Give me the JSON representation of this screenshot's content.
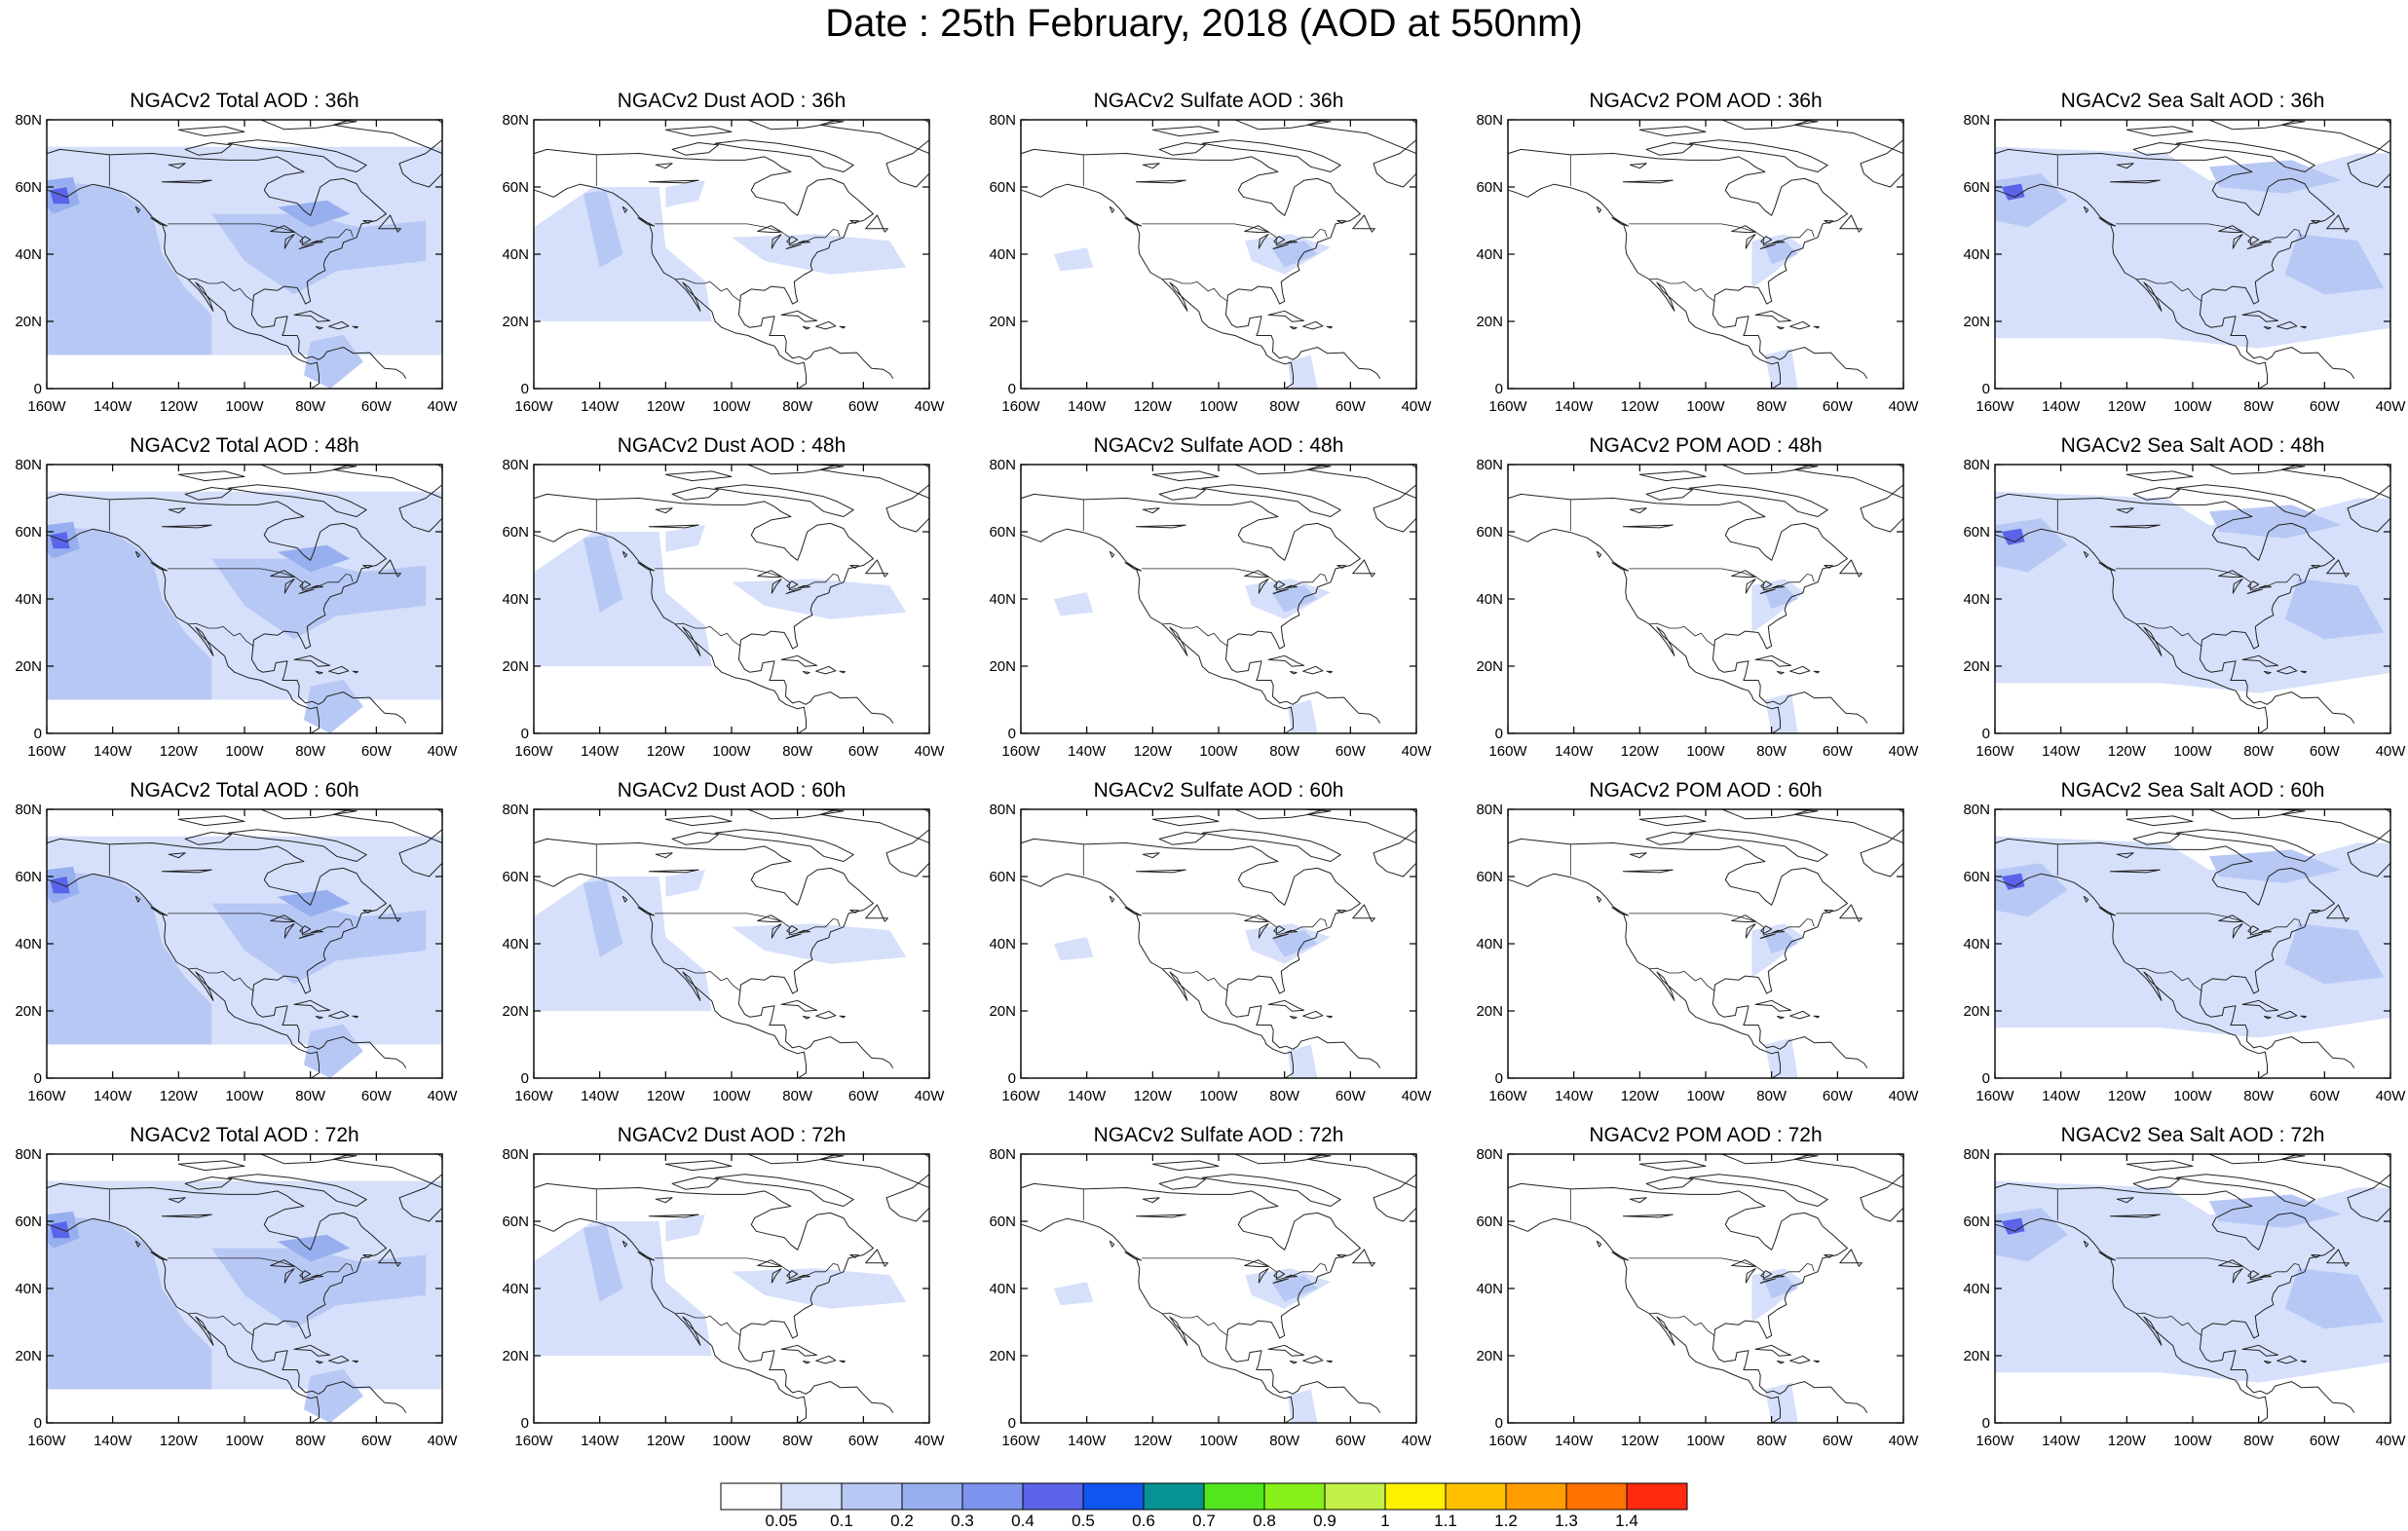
{
  "page_title": "Date : 25th February, 2018 (AOD at 550nm)",
  "panels": [
    [
      "NGACv2 Total AOD : 36h",
      "NGACv2 Dust AOD : 36h",
      "NGACv2 Sulfate AOD : 36h",
      "NGACv2 POM AOD : 36h",
      "NGACv2 Sea Salt AOD : 36h"
    ],
    [
      "NGACv2 Total AOD : 48h",
      "NGACv2 Dust AOD : 48h",
      "NGACv2 Sulfate AOD : 48h",
      "NGACv2 POM AOD : 48h",
      "NGACv2 Sea Salt AOD : 48h"
    ],
    [
      "NGACv2 Total AOD : 60h",
      "NGACv2 Dust AOD : 60h",
      "NGACv2 Sulfate AOD : 60h",
      "NGACv2 POM AOD : 60h",
      "NGACv2 Sea Salt AOD : 60h"
    ],
    [
      "NGACv2 Total AOD : 72h",
      "NGACv2 Dust AOD : 72h",
      "NGACv2 Sulfate AOD : 72h",
      "NGACv2 POM AOD : 72h",
      "NGACv2 Sea Salt  AOD : 72h"
    ]
  ],
  "axes": {
    "lat_labels": [
      "80N",
      "60N",
      "40N",
      "20N",
      "0"
    ],
    "lon_labels": [
      "160W",
      "140W",
      "120W",
      "100W",
      "80W",
      "60W",
      "40W"
    ],
    "lat_range": [
      0,
      80
    ],
    "lon_range": [
      -160,
      -40
    ]
  },
  "colorbar": {
    "labels": [
      "0.05",
      "0.1",
      "0.2",
      "0.3",
      "0.4",
      "0.5",
      "0.6",
      "0.7",
      "0.8",
      "0.9",
      "1",
      "1.1",
      "1.2",
      "1.3",
      "1.4"
    ],
    "colors": [
      "#ffffff",
      "#d6e0fb",
      "#b8c8f5",
      "#97afef",
      "#7e93ee",
      "#5b64e9",
      "#1155f0",
      "#079393",
      "#54e61d",
      "#87ef1a",
      "#c3f046",
      "#fff100",
      "#ffc000",
      "#ff9d00",
      "#ff7200",
      "#ff2a10"
    ]
  },
  "field_colors": {
    "light": "#d6e0fb",
    "medium": "#b8c8f5",
    "strong": "#97afef",
    "peak": "#5b64e9"
  }
}
